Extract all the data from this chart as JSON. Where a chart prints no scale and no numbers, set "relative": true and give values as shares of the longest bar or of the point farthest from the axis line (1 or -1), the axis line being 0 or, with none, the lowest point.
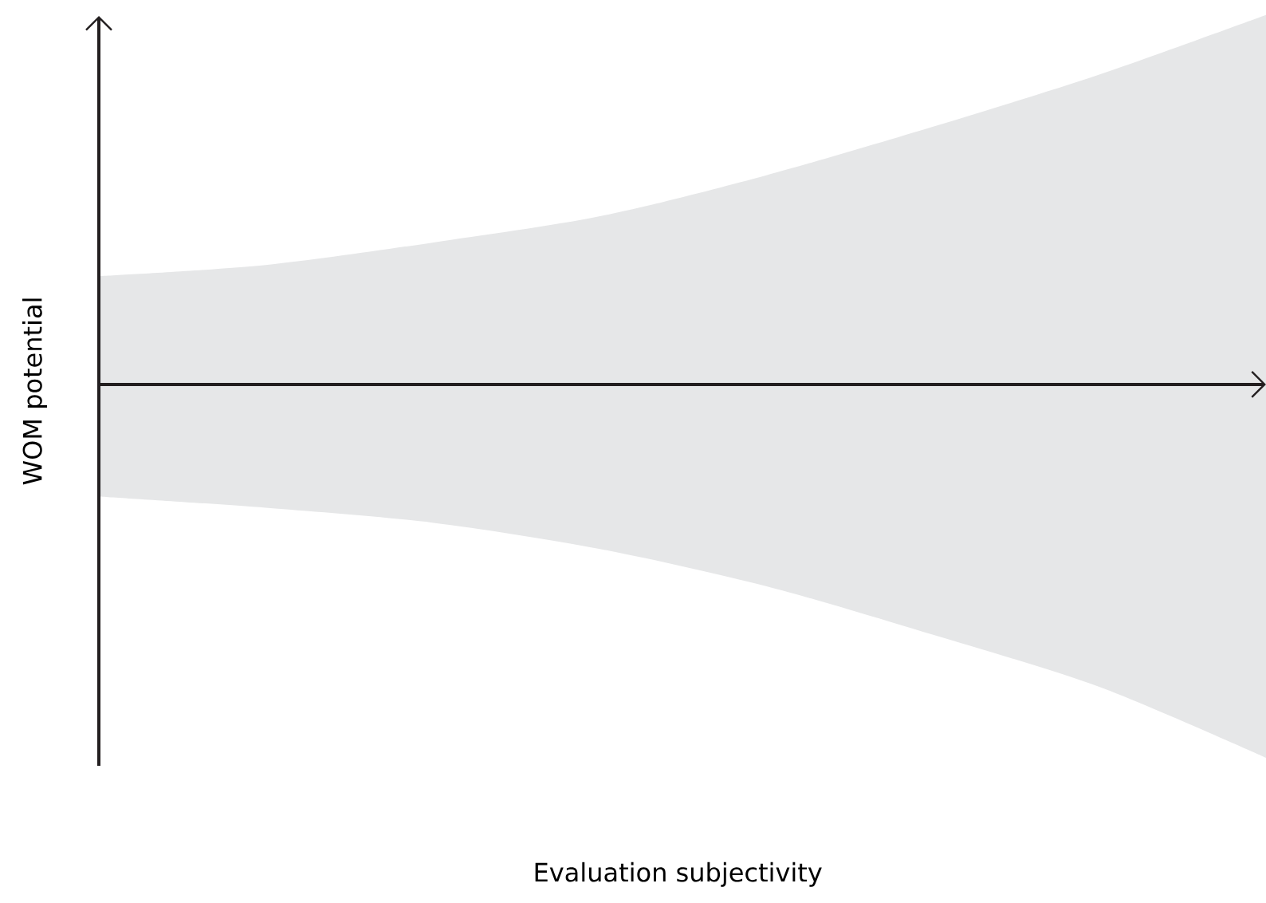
{
  "chart_data": {
    "type": "area",
    "xlabel": "Evaluation subjectivity",
    "ylabel": "WOM potential",
    "relative": true,
    "categories": [
      null,
      null,
      null,
      null,
      null,
      null,
      null,
      null
    ],
    "series": [
      {
        "color": "#e6e7e8",
        "values": [
          0.29,
          0.32,
          0.38,
          0.45,
          0.56,
          0.69,
          0.83,
          0.99
        ]
      },
      {
        "color": "#e6e7e8",
        "values": [
          -0.3,
          -0.33,
          -0.37,
          -0.44,
          -0.54,
          -0.67,
          -0.81,
          -1.0
        ]
      }
    ]
  }
}
